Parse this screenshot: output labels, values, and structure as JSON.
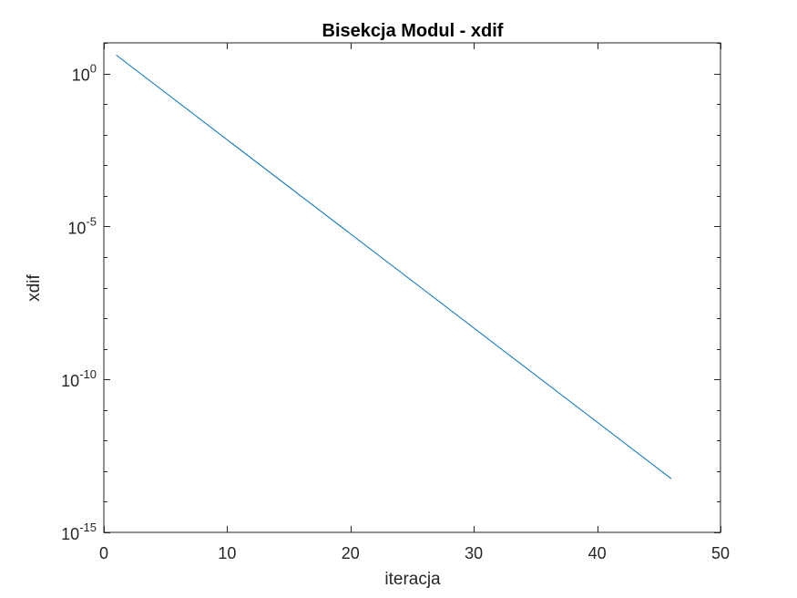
{
  "chart_data": {
    "type": "line",
    "title": "Bisekcja Modul - xdif",
    "xlabel": "iteracja",
    "ylabel": "xdif",
    "xlim": [
      0,
      50
    ],
    "ylim": [
      1e-15,
      10
    ],
    "yscale": "log",
    "grid": false,
    "line_color": "#0072BD",
    "x_ticks": [
      0,
      10,
      20,
      30,
      40,
      50
    ],
    "x_tick_labels": [
      "0",
      "10",
      "20",
      "30",
      "40",
      "50"
    ],
    "y_ticks": [
      1e-15,
      1e-10,
      1e-05,
      1
    ],
    "y_tick_labels": [
      {
        "base": "10",
        "exp": "-15"
      },
      {
        "base": "10",
        "exp": "-10"
      },
      {
        "base": "10",
        "exp": "-5"
      },
      {
        "base": "10",
        "exp": "0"
      }
    ],
    "series": [
      {
        "x": [
          1,
          46
        ],
        "y": [
          4,
          5.7e-14
        ]
      }
    ]
  }
}
